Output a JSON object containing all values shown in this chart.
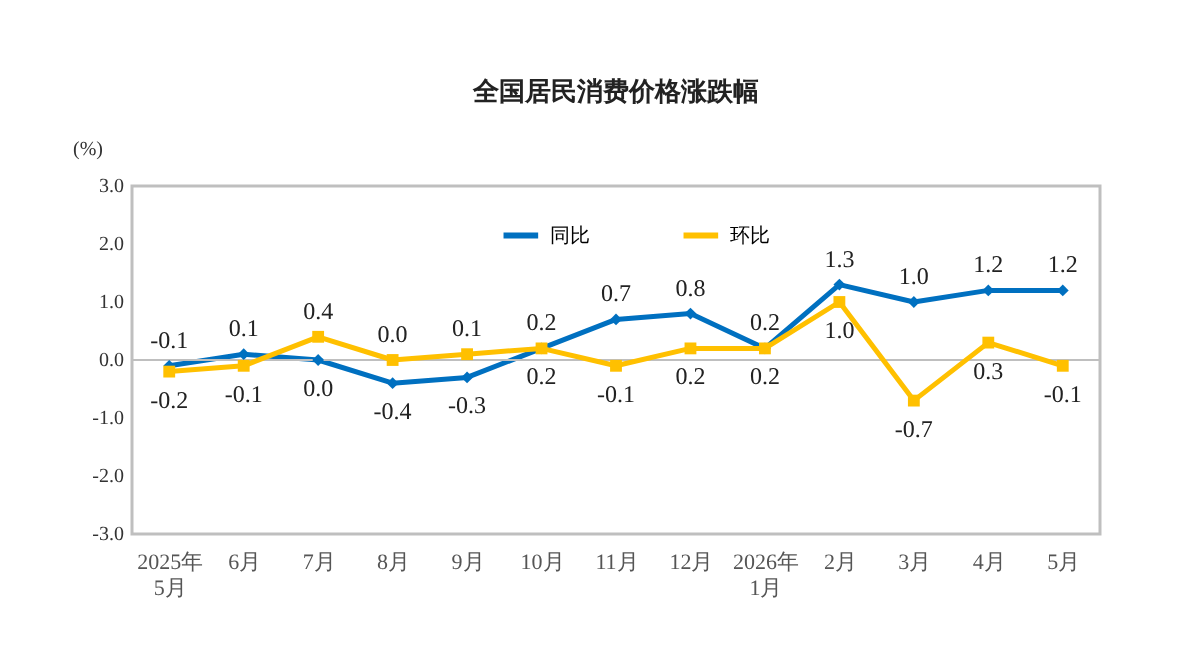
{
  "chart_data": {
    "type": "line",
    "title": "全国居民消费价格涨跌幅",
    "ylabel": "(%)",
    "categories": [
      "2025年\n5月",
      "6月",
      "7月",
      "8月",
      "9月",
      "10月",
      "11月",
      "12月",
      "2026年\n1月",
      "2月",
      "3月",
      "4月",
      "5月"
    ],
    "series": [
      {
        "name": "同比",
        "color": "#0070c0",
        "marker": "diamond",
        "values": [
          -0.1,
          0.1,
          0.0,
          -0.4,
          -0.3,
          0.2,
          0.7,
          0.8,
          0.2,
          1.3,
          1.0,
          1.2,
          1.2
        ],
        "value_labels": [
          "-0.1",
          "0.1",
          "0.0",
          "-0.4",
          "-0.3",
          "0.2",
          "0.7",
          "0.8",
          "0.2",
          "1.3",
          "1.0",
          "1.2",
          "1.2"
        ]
      },
      {
        "name": "环比",
        "color": "#ffc000",
        "marker": "square",
        "values": [
          -0.2,
          -0.1,
          0.4,
          0.0,
          0.1,
          0.2,
          -0.1,
          0.2,
          0.2,
          1.0,
          -0.7,
          0.3,
          -0.1
        ],
        "value_labels": [
          "-0.2",
          "-0.1",
          "0.4",
          "0.0",
          "0.1",
          "0.2",
          "-0.1",
          "0.2",
          "0.2",
          "1.0",
          "-0.7",
          "0.3",
          "-0.1"
        ]
      }
    ],
    "ylim": [
      -3.0,
      3.0
    ],
    "yticks": [
      {
        "value": -3,
        "label": "-3.0"
      },
      {
        "value": -2,
        "label": "-2.0"
      },
      {
        "value": -1,
        "label": "-1.0"
      },
      {
        "value": 0,
        "label": "0.0"
      },
      {
        "value": 1,
        "label": "1.0"
      },
      {
        "value": 2,
        "label": "2.0"
      },
      {
        "value": 3,
        "label": "3.0"
      }
    ],
    "ref_lines": [
      {
        "axis": "y",
        "value": 0,
        "color": "#bfbfbf"
      }
    ],
    "legend": "top"
  }
}
